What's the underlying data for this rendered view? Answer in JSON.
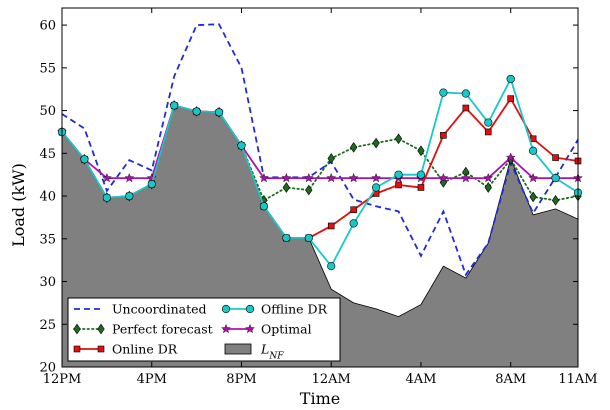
{
  "chart_data": {
    "type": "line",
    "xlabel": "Time",
    "ylabel": "Load (kW)",
    "ylim": [
      20,
      62
    ],
    "xlim": [
      0,
      23
    ],
    "x": [
      0,
      1,
      2,
      3,
      4,
      5,
      6,
      7,
      8,
      9,
      10,
      11,
      12,
      13,
      14,
      15,
      16,
      17,
      18,
      19,
      20,
      21,
      22,
      23
    ],
    "x_ticks": [
      {
        "x": 0,
        "label": "12PM"
      },
      {
        "x": 4,
        "label": "4PM"
      },
      {
        "x": 8,
        "label": "8PM"
      },
      {
        "x": 12,
        "label": "12AM"
      },
      {
        "x": 16,
        "label": "4AM"
      },
      {
        "x": 20,
        "label": "8AM"
      },
      {
        "x": 23,
        "label": "11AM"
      }
    ],
    "y_ticks": [
      {
        "y": 20,
        "label": "20"
      },
      {
        "y": 25,
        "label": "25"
      },
      {
        "y": 30,
        "label": "30"
      },
      {
        "y": 35,
        "label": "35"
      },
      {
        "y": 40,
        "label": "40"
      },
      {
        "y": 45,
        "label": "45"
      },
      {
        "y": 50,
        "label": "50"
      },
      {
        "y": 55,
        "label": "55"
      },
      {
        "y": 60,
        "label": "60"
      }
    ],
    "grid": false,
    "legend_position": "bottom-left",
    "series": [
      {
        "name": "L_NF",
        "kind": "area",
        "color": "#808080",
        "values": [
          47.5,
          44.3,
          39.8,
          40.0,
          41.4,
          50.6,
          49.9,
          49.8,
          45.9,
          38.8,
          35.1,
          35.1,
          29.1,
          27.5,
          26.8,
          25.9,
          27.3,
          31.8,
          30.4,
          34.5,
          44.4,
          37.8,
          38.5,
          37.3
        ]
      },
      {
        "name": "Uncoordinated",
        "kind": "dashed",
        "color": "#1f2bd6",
        "values": [
          49.6,
          47.9,
          40.6,
          44.2,
          43.0,
          54.0,
          60.0,
          60.1,
          55.0,
          42.2,
          42.2,
          42.2,
          44.0,
          39.6,
          38.8,
          38.2,
          33.0,
          38.2,
          30.8,
          34.5,
          43.9,
          38.0,
          42.2,
          46.6
        ]
      },
      {
        "name": "Perfect forecast",
        "kind": "dotted-diamond",
        "color": "#1e6b1e",
        "values": [
          47.5,
          44.3,
          39.8,
          40.0,
          41.4,
          50.6,
          49.9,
          49.8,
          45.9,
          39.5,
          41.0,
          40.7,
          44.4,
          45.7,
          46.2,
          46.7,
          45.3,
          41.6,
          42.8,
          41.0,
          44.3,
          39.9,
          39.5,
          40.0
        ]
      },
      {
        "name": "Online DR",
        "kind": "square",
        "color": "#e01010",
        "values": [
          47.5,
          44.3,
          39.8,
          40.0,
          41.4,
          50.6,
          49.9,
          49.8,
          45.9,
          38.8,
          35.1,
          35.1,
          36.5,
          38.4,
          40.3,
          41.3,
          41.0,
          47.1,
          50.3,
          47.5,
          51.4,
          46.7,
          44.5,
          44.1
        ]
      },
      {
        "name": "Offline DR",
        "kind": "circle",
        "color": "#18c8c8",
        "values": [
          47.5,
          44.3,
          39.8,
          40.0,
          41.4,
          50.6,
          49.9,
          49.8,
          45.9,
          38.8,
          35.1,
          35.1,
          31.8,
          36.8,
          41.0,
          42.5,
          42.5,
          52.1,
          52.0,
          48.6,
          53.7,
          45.3,
          42.1,
          40.4
        ]
      },
      {
        "name": "Optimal",
        "kind": "star",
        "color": "#b010b0",
        "values": [
          47.5,
          44.3,
          42.1,
          42.1,
          42.1,
          50.6,
          49.9,
          49.8,
          45.9,
          42.1,
          42.1,
          42.1,
          42.1,
          42.1,
          42.1,
          42.1,
          42.1,
          42.1,
          42.1,
          42.1,
          44.5,
          42.1,
          42.1,
          42.1
        ]
      }
    ],
    "legend": [
      {
        "key": "Uncoordinated",
        "label": "Uncoordinated"
      },
      {
        "key": "Offline DR",
        "label": "Offline DR"
      },
      {
        "key": "Perfect forecast",
        "label": "Perfect forecast"
      },
      {
        "key": "Optimal",
        "label": "Optimal"
      },
      {
        "key": "Online DR",
        "label": "Online DR"
      },
      {
        "key": "L_NF",
        "label_main": "L",
        "label_sub": "NF"
      }
    ]
  }
}
